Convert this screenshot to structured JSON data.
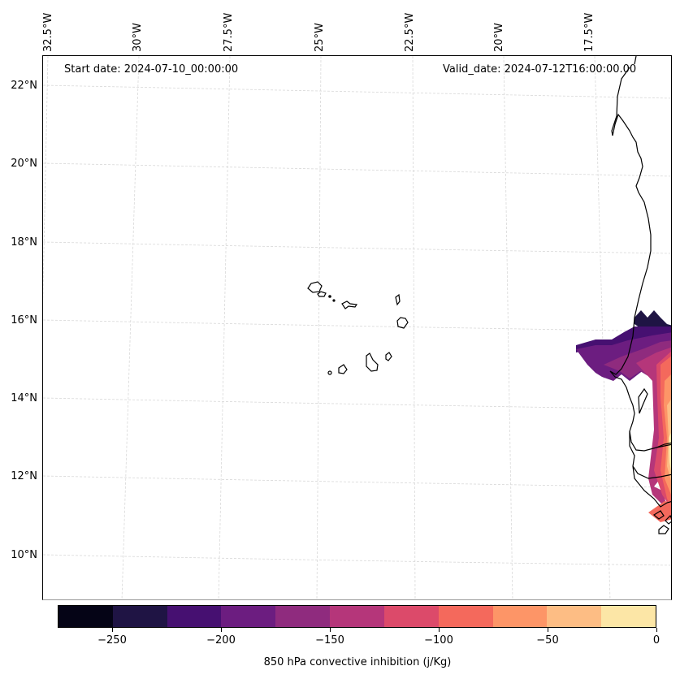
{
  "map": {
    "title_left": "Start date: 2024-07-10_00:00:00",
    "title_right": "Valid_date: 2024-07-12T16:00:00.00",
    "projection_grid": "dashed light gray graticule",
    "lon_labels": [
      "32.5°W",
      "30°W",
      "27.5°W",
      "25°W",
      "22.5°W",
      "20°W",
      "17.5°W"
    ],
    "lat_labels": [
      "22°N",
      "20°N",
      "18°N",
      "16°N",
      "14°N",
      "12°N",
      "10°N"
    ],
    "features": [
      "Cape Verde islands outline",
      "West African coastline (Mauritania, Senegal, Gambia, Guinea-Bissau)"
    ],
    "coastline_color": "#000000"
  },
  "colorbar": {
    "label": "850 hPa convective inhibition (j/Kg)",
    "min": -275,
    "max": 0,
    "step": 25,
    "colors": [
      "#050416",
      "#1f1444",
      "#461071",
      "#6c1d80",
      "#8f2b7e",
      "#b5367a",
      "#dc4a6a",
      "#f4695c",
      "#fd9567",
      "#fdbd84",
      "#fce6a6"
    ],
    "ticks": [
      "−250",
      "−200",
      "−150",
      "−100",
      "−50",
      "0"
    ],
    "tick_values": [
      -250,
      -200,
      -150,
      -100,
      -50,
      0
    ]
  }
}
